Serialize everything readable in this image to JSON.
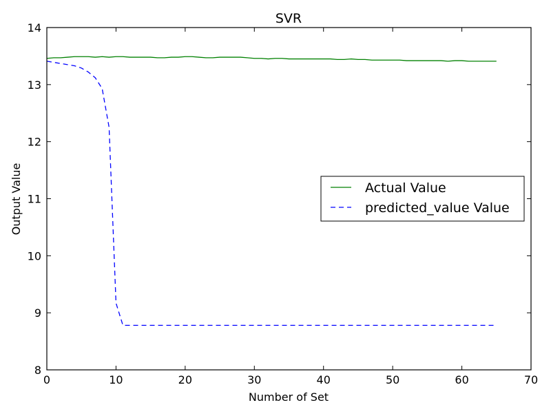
{
  "chart_data": {
    "type": "line",
    "title": "SVR",
    "xlabel": "Number of Set",
    "ylabel": "Output Value",
    "xlim": [
      0,
      70
    ],
    "ylim": [
      8,
      14
    ],
    "xticks": [
      0,
      10,
      20,
      30,
      40,
      50,
      60,
      70
    ],
    "yticks": [
      8,
      9,
      10,
      11,
      12,
      13,
      14
    ],
    "grid": false,
    "legend_position": "center-right",
    "series": [
      {
        "name": "Actual Value",
        "color": "#008000",
        "style": "solid",
        "x": [
          0,
          1,
          2,
          3,
          4,
          5,
          6,
          7,
          8,
          9,
          10,
          11,
          12,
          13,
          14,
          15,
          16,
          17,
          18,
          19,
          20,
          21,
          22,
          23,
          24,
          25,
          26,
          27,
          28,
          29,
          30,
          31,
          32,
          33,
          34,
          35,
          36,
          37,
          38,
          39,
          40,
          41,
          42,
          43,
          44,
          45,
          46,
          47,
          48,
          49,
          50,
          51,
          52,
          53,
          54,
          55,
          56,
          57,
          58,
          59,
          60,
          61,
          62,
          63,
          64,
          65
        ],
        "y": [
          13.46,
          13.47,
          13.47,
          13.48,
          13.49,
          13.49,
          13.49,
          13.48,
          13.49,
          13.48,
          13.49,
          13.49,
          13.48,
          13.48,
          13.48,
          13.48,
          13.47,
          13.47,
          13.48,
          13.48,
          13.49,
          13.49,
          13.48,
          13.47,
          13.47,
          13.48,
          13.48,
          13.48,
          13.48,
          13.47,
          13.46,
          13.46,
          13.45,
          13.46,
          13.46,
          13.45,
          13.45,
          13.45,
          13.45,
          13.45,
          13.45,
          13.45,
          13.44,
          13.44,
          13.45,
          13.44,
          13.44,
          13.43,
          13.43,
          13.43,
          13.43,
          13.43,
          13.42,
          13.42,
          13.42,
          13.42,
          13.42,
          13.42,
          13.41,
          13.42,
          13.42,
          13.41,
          13.41,
          13.41,
          13.41,
          13.41
        ]
      },
      {
        "name": "predicted_value Value",
        "color": "#0000ff",
        "style": "dashed",
        "x": [
          0,
          1,
          2,
          3,
          4,
          5,
          6,
          7,
          8,
          9,
          10,
          11,
          12,
          13,
          14,
          15,
          16,
          17,
          18,
          19,
          20,
          21,
          22,
          23,
          24,
          25,
          26,
          27,
          28,
          29,
          30,
          31,
          32,
          33,
          34,
          35,
          36,
          37,
          38,
          39,
          40,
          41,
          42,
          43,
          44,
          45,
          46,
          47,
          48,
          49,
          50,
          51,
          52,
          53,
          54,
          55,
          56,
          57,
          58,
          59,
          60,
          61,
          62,
          63,
          64,
          65
        ],
        "y": [
          13.41,
          13.39,
          13.37,
          13.35,
          13.33,
          13.29,
          13.22,
          13.12,
          12.93,
          12.25,
          9.17,
          8.78,
          8.78,
          8.78,
          8.78,
          8.78,
          8.78,
          8.78,
          8.78,
          8.78,
          8.78,
          8.78,
          8.78,
          8.78,
          8.78,
          8.78,
          8.78,
          8.78,
          8.78,
          8.78,
          8.78,
          8.78,
          8.78,
          8.78,
          8.78,
          8.78,
          8.78,
          8.78,
          8.78,
          8.78,
          8.78,
          8.78,
          8.78,
          8.78,
          8.78,
          8.78,
          8.78,
          8.78,
          8.78,
          8.78,
          8.78,
          8.78,
          8.78,
          8.78,
          8.78,
          8.78,
          8.78,
          8.78,
          8.78,
          8.78,
          8.78,
          8.78,
          8.78,
          8.78,
          8.78,
          8.78
        ]
      }
    ]
  }
}
